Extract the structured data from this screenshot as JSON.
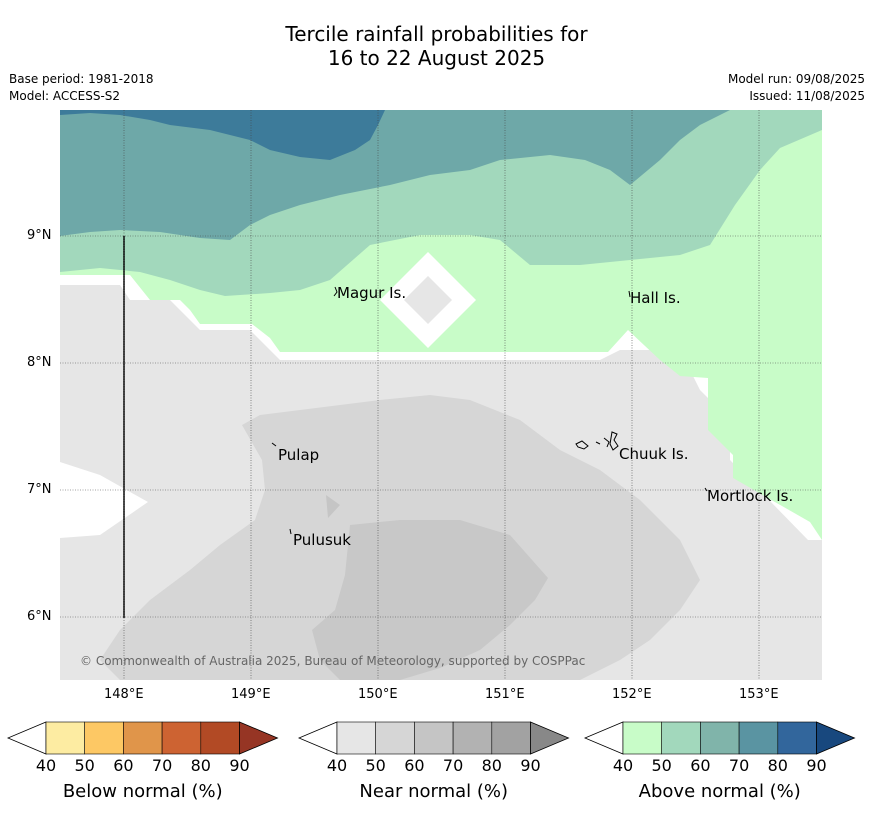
{
  "title": {
    "line1": "Tercile rainfall probabilities for",
    "line2": "16 to 22 August 2025"
  },
  "meta": {
    "base_period": "Base period: 1981-2018",
    "model": "Model: ACCESS-S2",
    "model_run": "Model run: 09/08/2025",
    "issued": "Issued: 11/08/2025"
  },
  "map": {
    "lat_labels": [
      "9°N",
      "8°N",
      "7°N",
      "6°N"
    ],
    "lon_labels": [
      "148°E",
      "149°E",
      "150°E",
      "151°E",
      "152°E",
      "153°E"
    ],
    "places": [
      "Magur Is.",
      "Hall Is.",
      "Pulap",
      "Chuuk Is.",
      "Mortlock Is.",
      "Pulusuk"
    ],
    "copyright": "© Commonwealth of Australia 2025, Bureau of Meteorology, supported by COSPPac"
  },
  "colorbars": [
    {
      "label": "Below normal (%)",
      "ticks": [
        "40",
        "50",
        "60",
        "70",
        "80",
        "90"
      ],
      "colors": [
        "#ffffff",
        "#fdeca2",
        "#fdc864",
        "#e0954a",
        "#cd6332",
        "#b24a25",
        "#963524"
      ]
    },
    {
      "label": "Near normal (%)",
      "ticks": [
        "40",
        "50",
        "60",
        "70",
        "80",
        "90"
      ],
      "colors": [
        "#ffffff",
        "#e6e6e6",
        "#d6d6d6",
        "#c5c5c5",
        "#b2b2b2",
        "#a2a2a2",
        "#888888"
      ]
    },
    {
      "label": "Above normal (%)",
      "ticks": [
        "40",
        "50",
        "60",
        "70",
        "80",
        "90"
      ],
      "colors": [
        "#ffffff",
        "#c8fcc8",
        "#a2d8bc",
        "#80b4aa",
        "#5a94a2",
        "#32669c",
        "#18487e"
      ]
    }
  ]
}
